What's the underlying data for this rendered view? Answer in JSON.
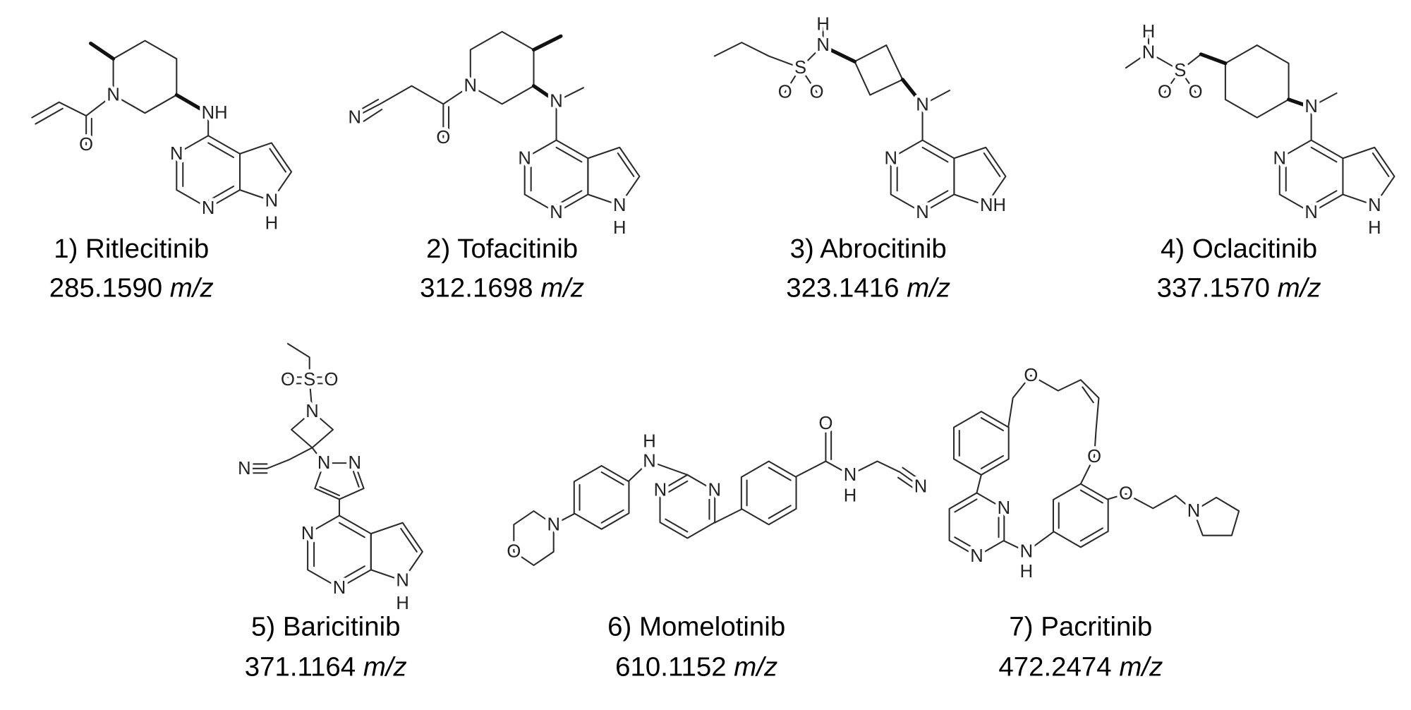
{
  "compounds": [
    {
      "name": "1) Ritlecitinib",
      "mass": "285.1590",
      "unit": "m/z",
      "atoms": [
        "O",
        "N",
        "NH",
        "N",
        "N",
        "N",
        "H"
      ]
    },
    {
      "name": "2) Tofacitinib",
      "mass": "312.1698",
      "unit": "m/z",
      "atoms": [
        "N",
        "O",
        "N",
        "N",
        "N",
        "N",
        "N",
        "H"
      ]
    },
    {
      "name": "3) Abrocitinib",
      "mass": "323.1416",
      "unit": "m/z",
      "atoms": [
        "H",
        "N",
        "S",
        "O",
        "O",
        "N",
        "N",
        "N",
        "NH"
      ]
    },
    {
      "name": "4) Oclacitinib",
      "mass": "337.1570",
      "unit": "m/z",
      "atoms": [
        "H",
        "N",
        "S",
        "O",
        "O",
        "N",
        "N",
        "N",
        "N",
        "H"
      ]
    },
    {
      "name": "5) Baricitinib",
      "mass": "371.1164",
      "unit": "m/z",
      "atoms": [
        "O",
        "S",
        "O",
        "N",
        "N",
        "N",
        "N",
        "N",
        "N",
        "N",
        "H"
      ]
    },
    {
      "name": "6) Momelotinib",
      "mass": "610.1152",
      "unit": "m/z",
      "atoms": [
        "O",
        "N",
        "H",
        "N",
        "N",
        "N",
        "O",
        "N",
        "H",
        "N"
      ]
    },
    {
      "name": "7) Pacritinib",
      "mass": "472.2474",
      "unit": "m/z",
      "atoms": [
        "O",
        "O",
        "O",
        "N",
        "N",
        "N",
        "H",
        "N"
      ]
    }
  ]
}
